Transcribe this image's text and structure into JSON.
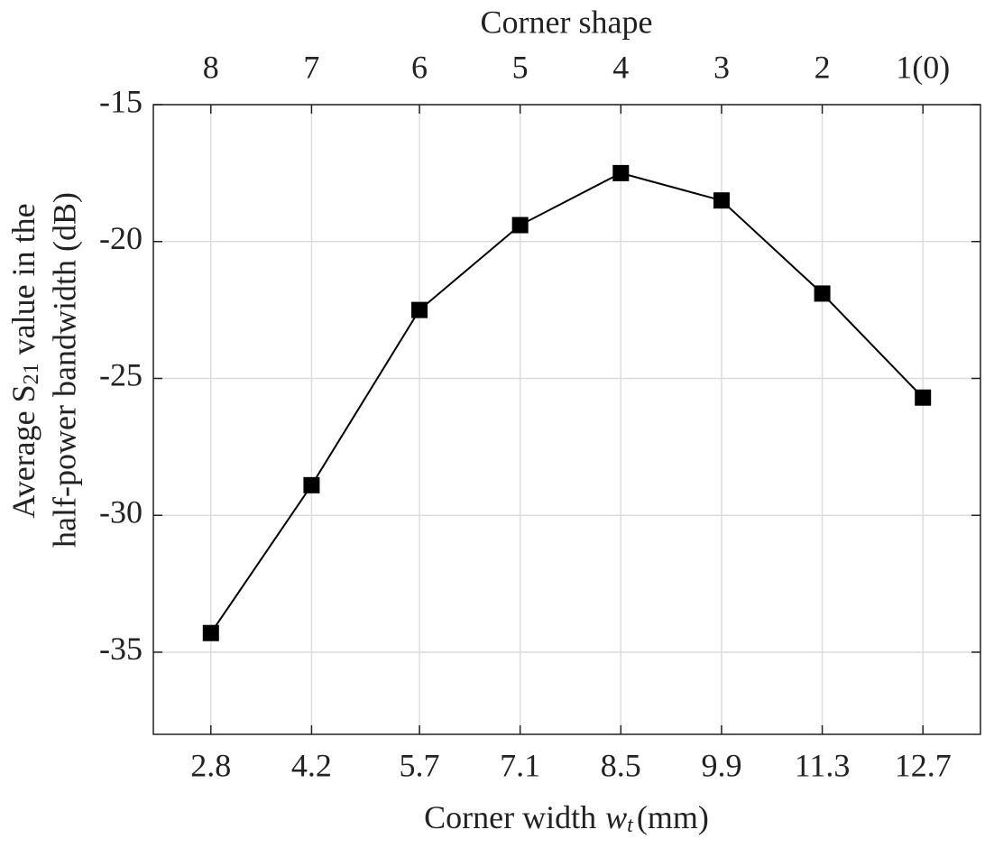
{
  "chart_data": {
    "type": "line",
    "top_axis_label": "Corner shape",
    "xlabel": [
      "Corner width",
      "w",
      "t",
      "(mm)"
    ],
    "ylabel": {
      "line1": [
        "Average S",
        "21",
        " value in the"
      ],
      "line2": "half-power bandwidth (dB)"
    },
    "x": [
      2.8,
      4.2,
      5.7,
      7.1,
      8.5,
      9.9,
      11.3,
      12.7
    ],
    "series": [
      {
        "color": "#000000",
        "values": [
          -34.3,
          -28.9,
          -22.5,
          -19.4,
          -17.5,
          -18.5,
          -21.9,
          -25.7
        ]
      }
    ],
    "xlim": [
      2,
      13.5
    ],
    "ylim": [
      -38,
      -15
    ],
    "xticks": [
      2.8,
      4.2,
      5.7,
      7.1,
      8.5,
      9.9,
      11.3,
      12.7
    ],
    "top_ticks": [
      {
        "value": 2.8,
        "label": "8"
      },
      {
        "value": 4.2,
        "label": "7"
      },
      {
        "value": 5.7,
        "label": "6"
      },
      {
        "value": 7.1,
        "label": "5"
      },
      {
        "value": 8.5,
        "label": "4"
      },
      {
        "value": 9.9,
        "label": "3"
      },
      {
        "value": 11.3,
        "label": "2"
      },
      {
        "value": 12.7,
        "label": "1(0)"
      }
    ],
    "yticks": [
      -35,
      -30,
      -25,
      -20,
      -15
    ],
    "grid": true
  }
}
